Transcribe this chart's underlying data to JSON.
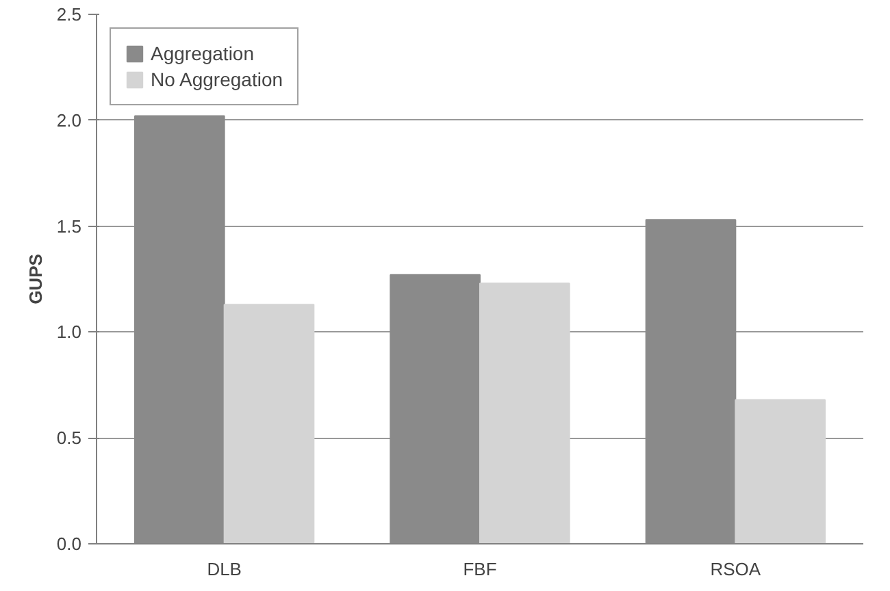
{
  "chart_data": {
    "type": "bar",
    "ylabel": "GUPS",
    "categories": [
      "DLB",
      "FBF",
      "RSOA"
    ],
    "series": [
      {
        "name": "Aggregation",
        "color": "#8a8a8a",
        "values": [
          2.02,
          1.27,
          1.53
        ]
      },
      {
        "name": "No Aggregation",
        "color": "#d4d4d4",
        "values": [
          1.13,
          1.23,
          0.68
        ]
      }
    ],
    "ylim": [
      0,
      2.5
    ],
    "yticks": [
      {
        "value": 0,
        "label": "0.0"
      },
      {
        "value": 0.5,
        "label": "0.5"
      },
      {
        "value": 1,
        "label": "1.0"
      },
      {
        "value": 1.5,
        "label": "1.5"
      },
      {
        "value": 2,
        "label": "2.0"
      },
      {
        "value": 2.5,
        "label": "2.5"
      }
    ],
    "grid": "y",
    "legend": "top left"
  }
}
